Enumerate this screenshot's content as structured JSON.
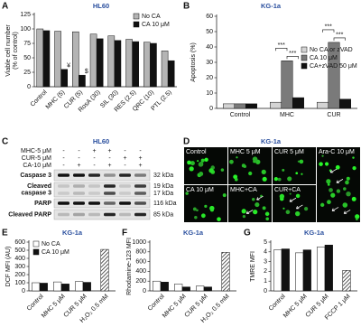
{
  "chart_data": [
    {
      "panel": "A",
      "type": "bar",
      "title": "HL60",
      "ylabel": [
        "Viable cell number",
        "(% of control)"
      ],
      "categories": [
        "Control",
        "MHC (5)",
        "CUR (5)",
        "RosA (30)",
        "SIL (30)",
        "RES (2.5)",
        "QRC (10)",
        "PTL (2.5)"
      ],
      "series": [
        {
          "name": "No CA",
          "color": "#b4b4b4",
          "values": [
            100,
            96,
            95,
            91,
            88,
            82,
            77,
            62
          ]
        },
        {
          "name": "CA 10 μM",
          "color": "#111111",
          "values": [
            97,
            30,
            20,
            83,
            80,
            78,
            75,
            45
          ]
        }
      ],
      "ylim": [
        0,
        125
      ],
      "yticks": [
        0,
        25,
        50,
        75,
        100,
        125
      ],
      "legend": "upper right",
      "annotations": [
        {
          "text": "¥",
          "category": 1,
          "series": 1
        },
        {
          "text": "$",
          "category": 2,
          "series": 1
        }
      ]
    },
    {
      "panel": "B",
      "type": "bar",
      "title": "KG-1a",
      "ylabel": [
        "Apoptosis (%)"
      ],
      "categories": [
        "Control",
        "MHC",
        "CUR"
      ],
      "series": [
        {
          "name": "No CA or zVAD",
          "color": "#d4d4d4",
          "values": [
            3,
            4,
            4
          ]
        },
        {
          "name": "CA 10 μM",
          "color": "#7a7a7a",
          "values": [
            3,
            31,
            43
          ]
        },
        {
          "name": "CA+zVAD 50 μM",
          "color": "#111111",
          "values": [
            3,
            7,
            6
          ]
        }
      ],
      "ylim": [
        0,
        60
      ],
      "yticks": [
        0,
        10,
        20,
        30,
        40,
        50,
        60
      ],
      "legend": "center right",
      "annotations": [
        {
          "text": "***",
          "category": 1,
          "from": 1,
          "to": 2
        },
        {
          "text": "***",
          "category": 1,
          "from": 0,
          "to": 1
        },
        {
          "text": "***",
          "category": 2,
          "from": 1,
          "to": 2
        },
        {
          "text": "***",
          "category": 2,
          "from": 0,
          "to": 1
        }
      ]
    },
    {
      "panel": "E",
      "type": "bar",
      "title": "KG-1a",
      "ylabel": [
        "DCF MFI (AU)"
      ],
      "categories": [
        "Control",
        "MHC 5 μM",
        "CUR 5 μM",
        "H₂O₂ 0.5 mM"
      ],
      "series": [
        {
          "name": "No CA",
          "color": "#ffffff",
          "values": [
            100,
            110,
            115,
            510
          ]
        },
        {
          "name": "CA 10 μM",
          "color": "#111111",
          "values": [
            95,
            85,
            105,
            null
          ]
        }
      ],
      "hatched_categories": [
        3
      ],
      "ylim": [
        0,
        600
      ],
      "yticks": [
        0,
        100,
        200,
        300,
        400,
        500,
        600
      ],
      "legend": "upper left"
    },
    {
      "panel": "F",
      "type": "bar",
      "title": "KG-1a",
      "ylabel": [
        "Rhodamine-123 MFI"
      ],
      "categories": [
        "Control",
        "MHC 5 μM",
        "CUR 5 μM",
        "H₂O₂ 0.5 mM"
      ],
      "series": [
        {
          "color": "#ffffff",
          "values": [
            200,
            140,
            100,
            790
          ]
        },
        {
          "color": "#111111",
          "values": [
            180,
            80,
            80,
            null
          ]
        }
      ],
      "hatched_categories": [
        3
      ],
      "ylim": [
        0,
        1000
      ],
      "yticks": [
        0,
        200,
        400,
        600,
        800,
        1000
      ]
    },
    {
      "panel": "G",
      "type": "bar",
      "title": "KG-1a",
      "ylabel": [
        "TMRE MFI"
      ],
      "categories": [
        "Control",
        "MHC 5 μM",
        "CUR 5 μM",
        "FCCP 1 μM"
      ],
      "series": [
        {
          "color": "#ffffff",
          "values": [
            4.2,
            3.9,
            4.5,
            2.1
          ]
        },
        {
          "color": "#111111",
          "values": [
            4.3,
            4.2,
            4.7,
            null
          ]
        }
      ],
      "hatched_categories": [
        3
      ],
      "ylim": [
        0,
        5
      ],
      "yticks": [
        0,
        1,
        2,
        3,
        4,
        5
      ]
    }
  ],
  "blot": {
    "panel": "C",
    "title": "HL60",
    "treatments": [
      {
        "name": "MHC-5 μM",
        "signs": [
          "-",
          "-",
          "+",
          "+",
          "-",
          "-"
        ]
      },
      {
        "name": "CUR-5 μM",
        "signs": [
          "-",
          "-",
          "-",
          "-",
          "+",
          "+"
        ]
      },
      {
        "name": "CA-10 μM",
        "signs": [
          "-",
          "+",
          "-",
          "+",
          "-",
          "+"
        ]
      }
    ],
    "bands": [
      {
        "name": [
          "Caspase 3"
        ],
        "sizes": [
          "32 kDa"
        ]
      },
      {
        "name": [
          "Cleaved",
          "caspase 3"
        ],
        "sizes": [
          "19 kDa",
          "17 kDa"
        ]
      },
      {
        "name": [
          "PARP"
        ],
        "sizes": [
          "116 kDa"
        ]
      },
      {
        "name": [
          "Cleaved PARP"
        ],
        "sizes": [
          "85 kDa"
        ]
      }
    ]
  },
  "micrographs": {
    "panel": "D",
    "title": "KG-1a",
    "tiles": [
      "Control",
      "MHC 5 μM",
      "CUR 5 μM",
      "Ara-C 10 μM",
      "CA 10 μM",
      "MHC+CA",
      "CUR+CA"
    ]
  }
}
